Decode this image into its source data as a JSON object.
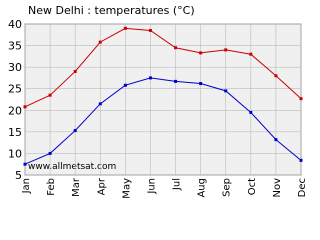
{
  "chart_data": {
    "type": "line",
    "title": "New Delhi : temperatures (°C)",
    "annotation": "www.allmetsat.com",
    "categories": [
      "Jan",
      "Feb",
      "Mar",
      "Apr",
      "May",
      "Jun",
      "Jul",
      "Aug",
      "Sep",
      "Oct",
      "Nov",
      "Dec"
    ],
    "series": [
      {
        "color": "#cc0000",
        "values": [
          20.8,
          23.5,
          29,
          35.8,
          39,
          38.5,
          34.5,
          33.3,
          34,
          33,
          28,
          22.7
        ]
      },
      {
        "color": "#0000cc",
        "values": [
          7.5,
          10,
          15.3,
          21.5,
          25.8,
          27.5,
          26.7,
          26.2,
          24.5,
          19.5,
          13.2,
          8.4
        ]
      }
    ],
    "ylim": [
      5,
      40
    ],
    "yticks": [
      5,
      10,
      15,
      20,
      25,
      30,
      35,
      40
    ],
    "grid": true
  }
}
